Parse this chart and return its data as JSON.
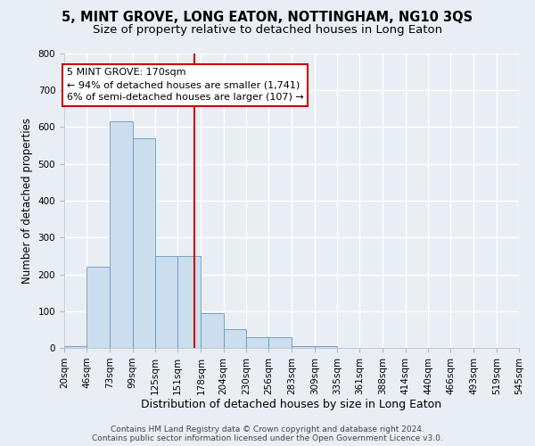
{
  "title": "5, MINT GROVE, LONG EATON, NOTTINGHAM, NG10 3QS",
  "subtitle": "Size of property relative to detached houses in Long Eaton",
  "xlabel": "Distribution of detached houses by size in Long Eaton",
  "ylabel": "Number of detached properties",
  "bin_edges": [
    20,
    46,
    73,
    99,
    125,
    151,
    178,
    204,
    230,
    256,
    283,
    309,
    335,
    361,
    388,
    414,
    440,
    466,
    493,
    519,
    545
  ],
  "bar_heights": [
    5,
    220,
    615,
    570,
    250,
    250,
    95,
    50,
    30,
    30,
    5,
    5,
    0,
    0,
    0,
    0,
    0,
    0,
    0,
    0
  ],
  "bar_color": "#ccdded",
  "bar_edgecolor": "#6699bb",
  "property_size": 170,
  "vline_color": "#cc0000",
  "annotation_text": "5 MINT GROVE: 170sqm\n← 94% of detached houses are smaller (1,741)\n6% of semi-detached houses are larger (107) →",
  "annotation_box_color": "white",
  "annotation_box_edgecolor": "#cc0000",
  "footer_text": "Contains HM Land Registry data © Crown copyright and database right 2024.\nContains public sector information licensed under the Open Government Licence v3.0.",
  "ylim": [
    0,
    800
  ],
  "yticks": [
    0,
    100,
    200,
    300,
    400,
    500,
    600,
    700,
    800
  ],
  "background_color": "#e8eef4",
  "grid_color": "white",
  "title_fontsize": 10.5,
  "subtitle_fontsize": 9.5,
  "tick_label_fontsize": 7.5,
  "ylabel_fontsize": 8.5,
  "xlabel_fontsize": 9,
  "annotation_fontsize": 8,
  "footer_fontsize": 6.5
}
